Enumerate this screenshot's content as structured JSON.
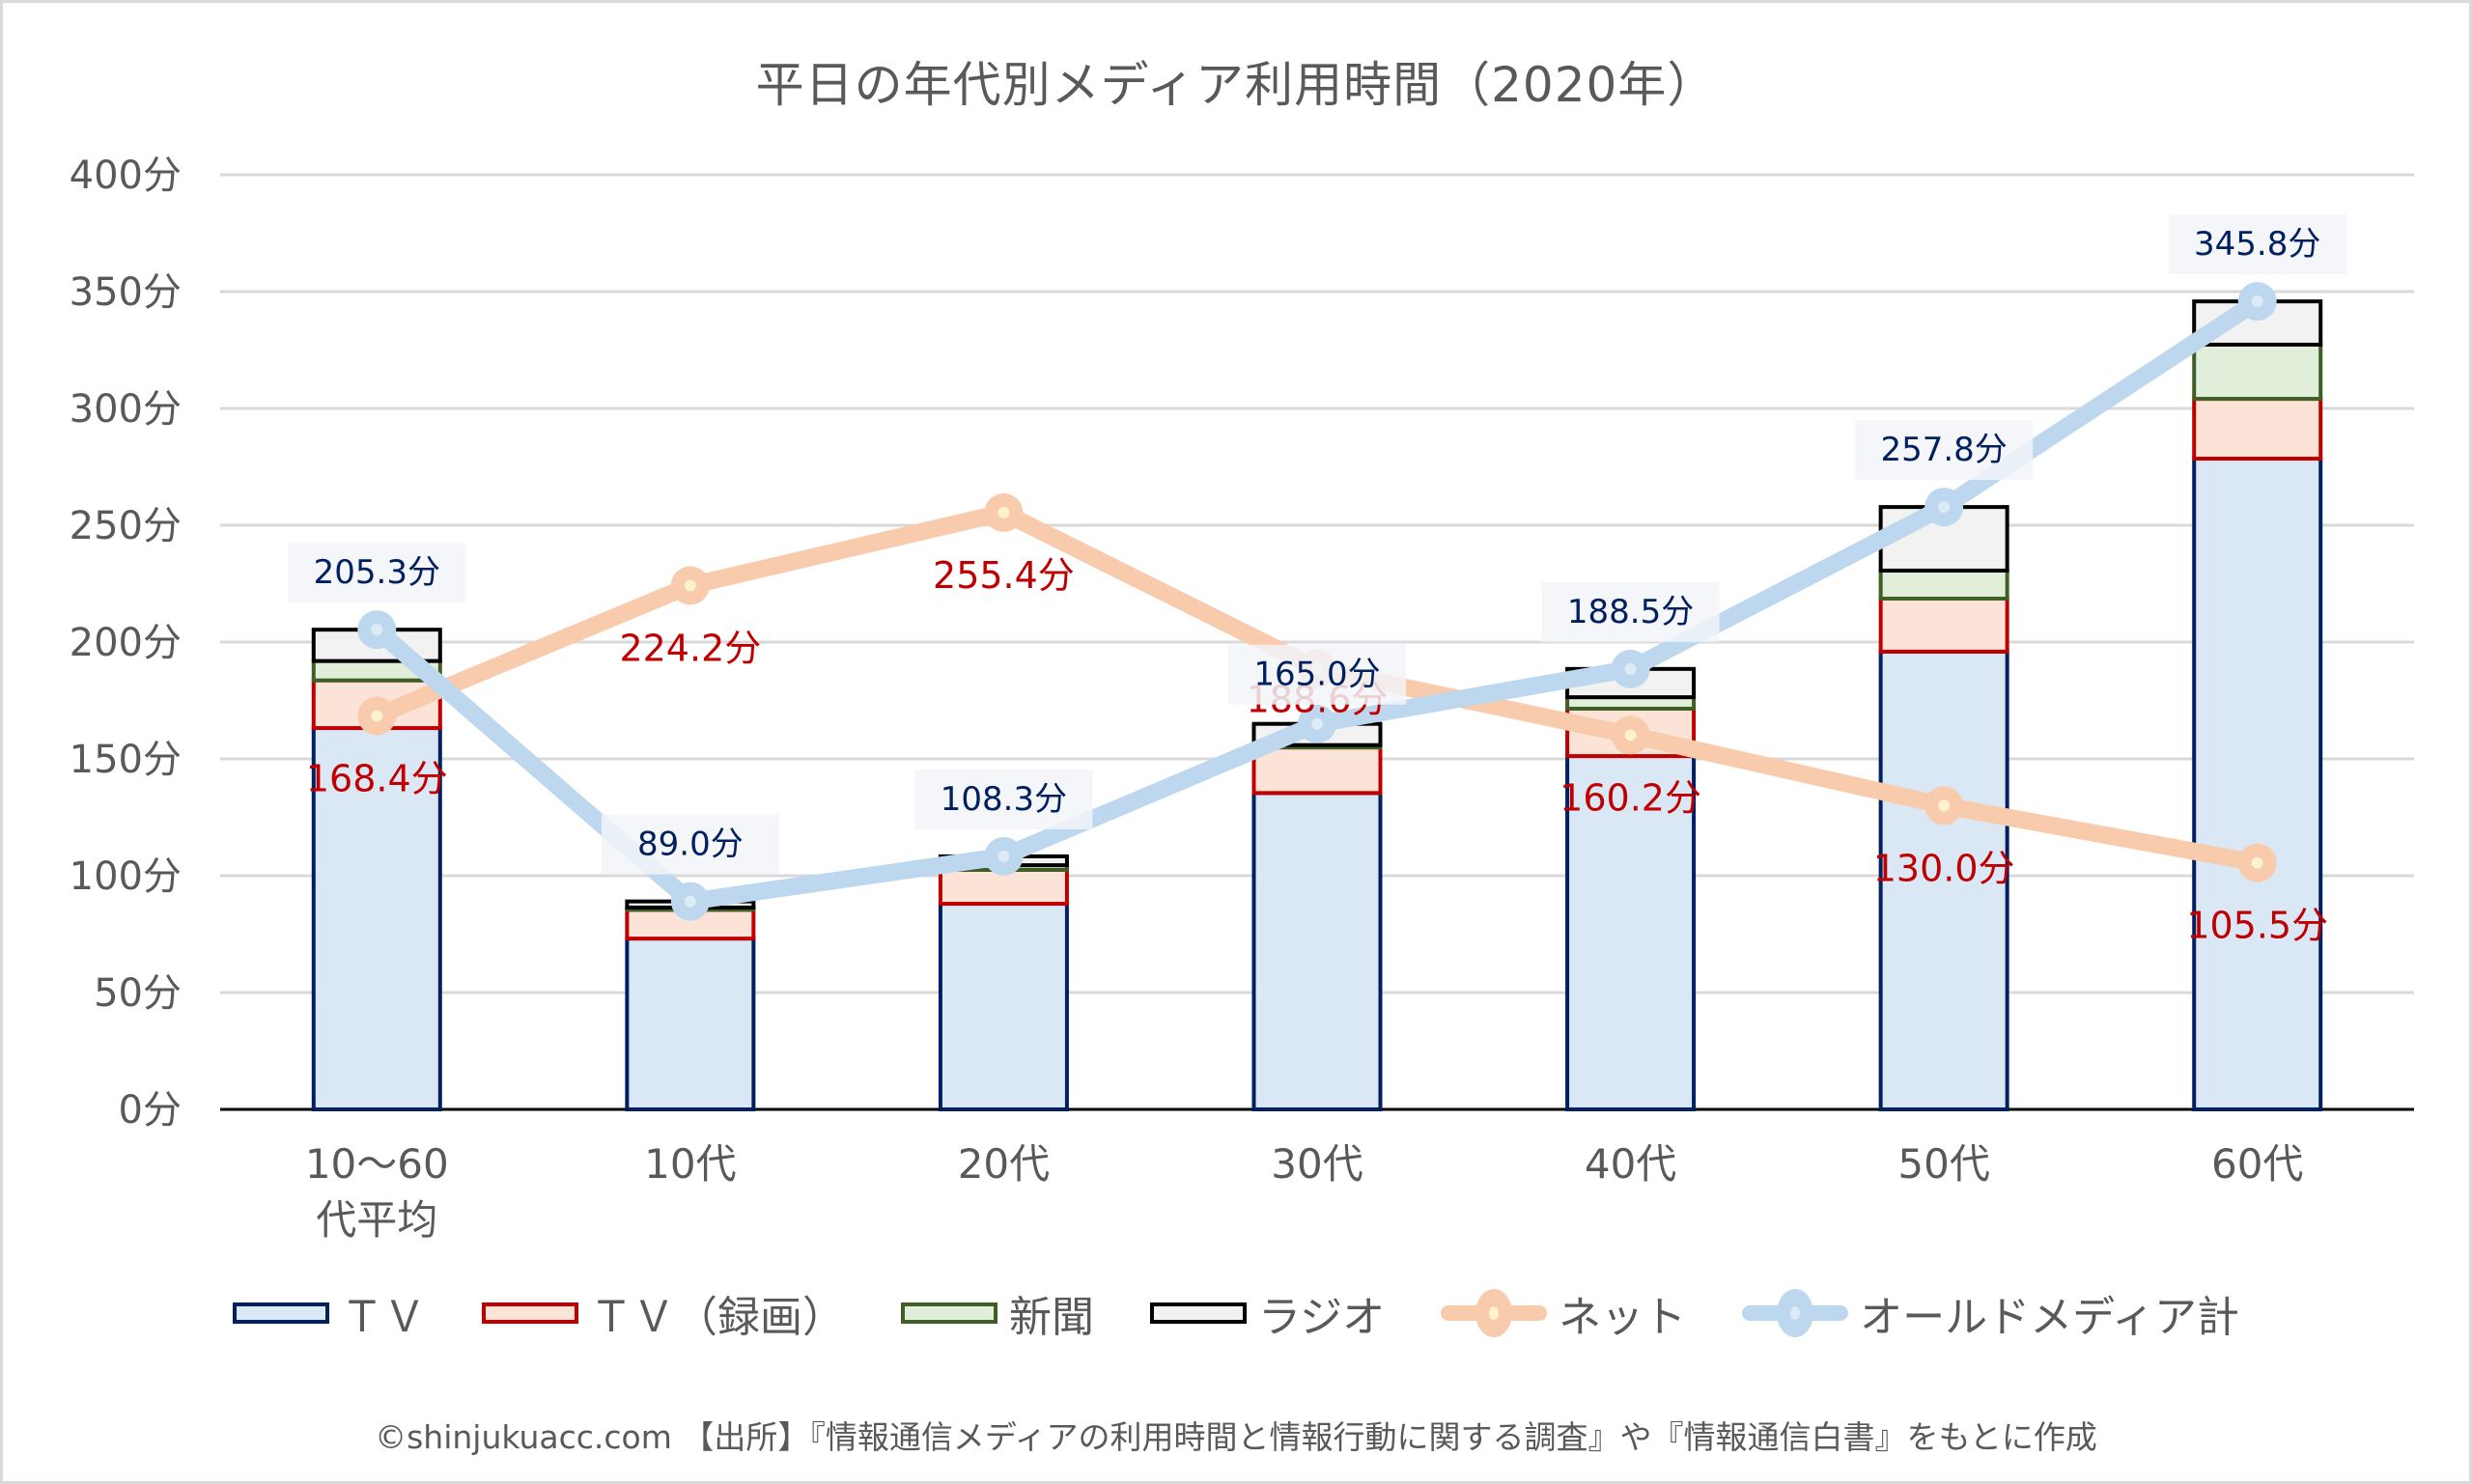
{
  "title": "平日の年代別メディア利用時間（2020年）",
  "footer": "©shinjukuacc.com 【出所】『情報通信メディアの利用時間と情報行動に関する調査』や『情報通信白書』をもとに作成",
  "legend": [
    {
      "name": "TV",
      "label": "ＴＶ",
      "kind": "bar"
    },
    {
      "name": "TV-recording",
      "label": "ＴＶ（録画）",
      "kind": "bar"
    },
    {
      "name": "newspaper",
      "label": "新聞",
      "kind": "bar"
    },
    {
      "name": "radio",
      "label": "ラジオ",
      "kind": "bar"
    },
    {
      "name": "net",
      "label": "ネット",
      "kind": "line"
    },
    {
      "name": "old-media-total",
      "label": "オールドメディア計",
      "kind": "line"
    }
  ],
  "colors": {
    "tv_fill": "#dae7f5",
    "tv_stroke": "#002060",
    "rec_fill": "#fbe4d7",
    "rec_stroke": "#c00000",
    "news_fill": "#e1efda",
    "news_stroke": "#3f5f26",
    "radio_fill": "#f2f2f2",
    "radio_stroke": "#000000",
    "net_line": "#f8cbad",
    "net_core": "#fff2cc",
    "old_line": "#bdd7ee",
    "old_core": "#ddebf7",
    "grid": "#d9d9d9",
    "label_bg": "#f2f4f8"
  },
  "chart_data": {
    "type": "bar",
    "title": "平日の年代別メディア利用時間（2020年）",
    "xlabel": "",
    "ylabel": "",
    "ylim": [
      0,
      400
    ],
    "yticks": [
      0,
      50,
      100,
      150,
      200,
      250,
      300,
      350,
      400
    ],
    "ytick_labels": [
      "0分",
      "50分",
      "100分",
      "150分",
      "200分",
      "250分",
      "300分",
      "350分",
      "400分"
    ],
    "grid": true,
    "legend_position": "bottom",
    "categories": [
      [
        "10～60",
        "代平均"
      ],
      [
        "10代"
      ],
      [
        "20代"
      ],
      [
        "30代"
      ],
      [
        "40代"
      ],
      [
        "50代"
      ],
      [
        "60代"
      ]
    ],
    "series": [
      {
        "name": "ＴＶ",
        "type": "stacked-bar",
        "values": [
          163.2,
          73.1,
          88.0,
          135.4,
          151.2,
          195.9,
          278.5
        ]
      },
      {
        "name": "ＴＶ（録画）",
        "type": "stacked-bar",
        "values": [
          20.4,
          12.3,
          14.5,
          19.5,
          20.3,
          22.7,
          25.6
        ]
      },
      {
        "name": "新聞",
        "type": "stacked-bar",
        "values": [
          8.3,
          1.0,
          2.0,
          1.0,
          4.9,
          12.0,
          23.2
        ]
      },
      {
        "name": "ラジオ",
        "type": "stacked-bar",
        "values": [
          13.4,
          2.6,
          3.8,
          9.1,
          12.1,
          27.2,
          18.5
        ]
      },
      {
        "name": "ネット",
        "type": "line",
        "values": [
          168.4,
          224.2,
          255.4,
          188.6,
          160.2,
          130.0,
          105.5
        ],
        "labels": [
          "168.4分",
          "224.2分",
          "255.4分",
          "188.6分",
          "160.2分",
          "130.0分",
          "105.5分"
        ]
      },
      {
        "name": "オールドメディア計",
        "type": "line",
        "values": [
          205.3,
          89.0,
          108.3,
          165.0,
          188.5,
          257.8,
          345.8
        ],
        "labels": [
          "205.3分",
          "89.0分",
          "108.3分",
          "165.0分",
          "188.5分",
          "257.8分",
          "345.8分"
        ]
      }
    ]
  }
}
